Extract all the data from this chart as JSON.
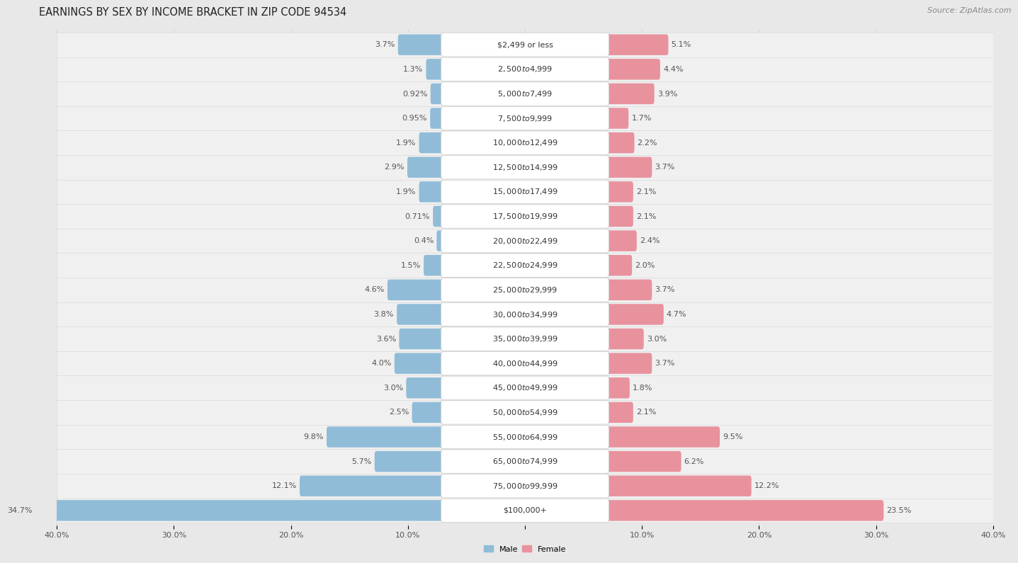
{
  "title": "EARNINGS BY SEX BY INCOME BRACKET IN ZIP CODE 94534",
  "source": "Source: ZipAtlas.com",
  "categories": [
    "$2,499 or less",
    "$2,500 to $4,999",
    "$5,000 to $7,499",
    "$7,500 to $9,999",
    "$10,000 to $12,499",
    "$12,500 to $14,999",
    "$15,000 to $17,499",
    "$17,500 to $19,999",
    "$20,000 to $22,499",
    "$22,500 to $24,999",
    "$25,000 to $29,999",
    "$30,000 to $34,999",
    "$35,000 to $39,999",
    "$40,000 to $44,999",
    "$45,000 to $49,999",
    "$50,000 to $54,999",
    "$55,000 to $64,999",
    "$65,000 to $74,999",
    "$75,000 to $99,999",
    "$100,000+"
  ],
  "male_values": [
    3.7,
    1.3,
    0.92,
    0.95,
    1.9,
    2.9,
    1.9,
    0.71,
    0.4,
    1.5,
    4.6,
    3.8,
    3.6,
    4.0,
    3.0,
    2.5,
    9.8,
    5.7,
    12.1,
    34.7
  ],
  "female_values": [
    5.1,
    4.4,
    3.9,
    1.7,
    2.2,
    3.7,
    2.1,
    2.1,
    2.4,
    2.0,
    3.7,
    4.7,
    3.0,
    3.7,
    1.8,
    2.1,
    9.5,
    6.2,
    12.2,
    23.5
  ],
  "male_color": "#90bcd8",
  "female_color": "#e8929e",
  "male_label": "Male",
  "female_label": "Female",
  "xlim": 40.0,
  "background_color": "#e8e8e8",
  "row_color_light": "#f5f5f5",
  "row_color_dark": "#ebebeb",
  "title_fontsize": 10.5,
  "label_fontsize": 8.0,
  "value_fontsize": 8.0,
  "source_fontsize": 8.0,
  "cat_label_fontsize": 8.0
}
